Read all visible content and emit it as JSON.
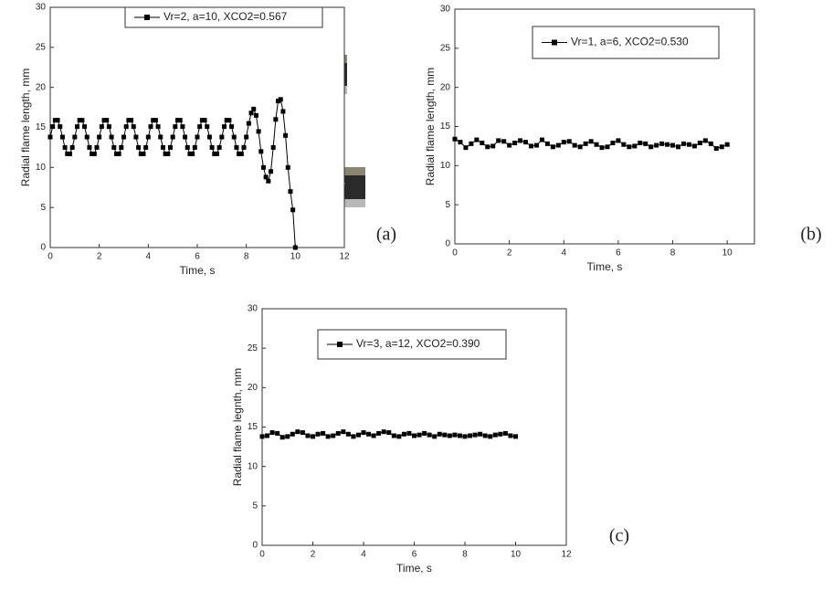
{
  "chart_data": [
    {
      "type": "line",
      "label": "(a)",
      "xlabel": "Time, s",
      "ylabel": "Radial flame length, mm",
      "xlim": [
        0,
        12
      ],
      "xticks": [
        0,
        2,
        4,
        6,
        8,
        10,
        12
      ],
      "ylim": [
        0,
        30
      ],
      "yticks": [
        0,
        5,
        10,
        15,
        20,
        25,
        30
      ],
      "x": [
        0,
        0.1,
        0.2,
        0.3,
        0.4,
        0.5,
        0.6,
        0.7,
        0.8,
        0.9,
        1,
        1.1,
        1.2,
        1.3,
        1.4,
        1.5,
        1.6,
        1.7,
        1.8,
        1.9,
        2,
        2.1,
        2.2,
        2.3,
        2.4,
        2.5,
        2.6,
        2.7,
        2.8,
        2.9,
        3,
        3.1,
        3.2,
        3.3,
        3.4,
        3.5,
        3.6,
        3.7,
        3.8,
        3.9,
        4,
        4.1,
        4.2,
        4.3,
        4.4,
        4.5,
        4.6,
        4.7,
        4.8,
        4.9,
        5,
        5.1,
        5.2,
        5.3,
        5.4,
        5.5,
        5.6,
        5.7,
        5.8,
        5.9,
        6,
        6.1,
        6.2,
        6.3,
        6.4,
        6.5,
        6.6,
        6.7,
        6.8,
        6.9,
        7,
        7.1,
        7.2,
        7.3,
        7.4,
        7.5,
        7.6,
        7.7,
        7.8,
        7.9,
        8,
        8.1,
        8.2,
        8.3,
        8.4,
        8.5,
        8.6,
        8.7,
        8.8,
        8.9,
        9,
        9.1,
        9.2,
        9.3,
        9.4,
        9.5,
        9.6,
        9.7,
        9.8,
        9.9,
        10
      ],
      "series": [
        {
          "name": "Vr=2, a=10, XCO2=0.567",
          "color": "#000000",
          "values": [
            13.8,
            15.1,
            15.9,
            15.9,
            15.1,
            13.8,
            12.5,
            11.7,
            11.7,
            12.5,
            13.8,
            15.1,
            15.9,
            15.9,
            15.1,
            13.8,
            12.5,
            11.7,
            11.7,
            12.5,
            13.8,
            15.1,
            15.9,
            15.9,
            15.1,
            13.8,
            12.5,
            11.7,
            11.7,
            12.5,
            13.8,
            15.1,
            15.9,
            15.9,
            15.1,
            13.8,
            12.5,
            11.7,
            11.7,
            12.5,
            13.8,
            15.1,
            15.9,
            15.9,
            15.1,
            13.8,
            12.5,
            11.7,
            11.7,
            12.5,
            13.8,
            15.1,
            15.9,
            15.9,
            15.1,
            13.8,
            12.5,
            11.7,
            11.7,
            12.5,
            13.8,
            15.1,
            15.9,
            15.9,
            15.1,
            13.8,
            12.5,
            11.7,
            11.7,
            12.5,
            13.8,
            15.1,
            15.9,
            15.9,
            15.1,
            13.8,
            12.5,
            11.7,
            11.7,
            12.5,
            13.8,
            15.5,
            16.8,
            17.3,
            16.5,
            14.5,
            12.0,
            10.0,
            8.8,
            8.3,
            9.5,
            12.5,
            16.0,
            18.3,
            18.5,
            17.0,
            14.0,
            10.0,
            7.0,
            4.7,
            0
          ]
        }
      ]
    },
    {
      "type": "line",
      "label": "(b)",
      "xlabel": "Time, s",
      "ylabel": "Radial flame length, mm",
      "xlim": [
        0,
        11
      ],
      "xticks": [
        0,
        2,
        4,
        6,
        8,
        10
      ],
      "ylim": [
        0,
        30
      ],
      "yticks": [
        0,
        5,
        10,
        15,
        20,
        25,
        30
      ],
      "x": [
        0,
        0.2,
        0.4,
        0.6,
        0.8,
        1,
        1.2,
        1.4,
        1.6,
        1.8,
        2,
        2.2,
        2.4,
        2.6,
        2.8,
        3,
        3.2,
        3.4,
        3.6,
        3.8,
        4,
        4.2,
        4.4,
        4.6,
        4.8,
        5,
        5.2,
        5.4,
        5.6,
        5.8,
        6,
        6.2,
        6.4,
        6.6,
        6.8,
        7,
        7.2,
        7.4,
        7.6,
        7.8,
        8,
        8.2,
        8.4,
        8.6,
        8.8,
        9,
        9.2,
        9.4,
        9.6,
        9.8,
        10
      ],
      "series": [
        {
          "name": "Vr=1, a=6, XCO2=0.530",
          "color": "#000000",
          "values": [
            13.4,
            13.0,
            12.3,
            12.8,
            13.3,
            12.9,
            12.4,
            12.5,
            13.2,
            13.1,
            12.6,
            12.9,
            13.2,
            13.0,
            12.5,
            12.6,
            13.3,
            12.8,
            12.4,
            12.6,
            13.0,
            13.1,
            12.6,
            12.4,
            12.8,
            13.1,
            12.7,
            12.3,
            12.4,
            12.9,
            13.2,
            12.7,
            12.4,
            12.5,
            12.9,
            12.8,
            12.4,
            12.6,
            12.8,
            12.7,
            12.6,
            12.4,
            12.8,
            12.7,
            12.5,
            12.9,
            13.2,
            12.8,
            12.2,
            12.4,
            12.7
          ]
        }
      ]
    },
    {
      "type": "line",
      "label": "(c)",
      "xlabel": "Time, s",
      "ylabel": "Radial flame legnth, mm",
      "xlim": [
        0,
        12
      ],
      "xticks": [
        0,
        2,
        4,
        6,
        8,
        10,
        12
      ],
      "ylim": [
        0,
        30
      ],
      "yticks": [
        0,
        5,
        10,
        15,
        20,
        25,
        30
      ],
      "x": [
        0,
        0.2,
        0.4,
        0.6,
        0.8,
        1,
        1.2,
        1.4,
        1.6,
        1.8,
        2,
        2.2,
        2.4,
        2.6,
        2.8,
        3,
        3.2,
        3.4,
        3.6,
        3.8,
        4,
        4.2,
        4.4,
        4.6,
        4.8,
        5,
        5.2,
        5.4,
        5.6,
        5.8,
        6,
        6.2,
        6.4,
        6.6,
        6.8,
        7,
        7.2,
        7.4,
        7.6,
        7.8,
        8,
        8.2,
        8.4,
        8.6,
        8.8,
        9,
        9.2,
        9.4,
        9.6,
        9.8,
        10
      ],
      "series": [
        {
          "name": "Vr=3, a=12, XCO2=0.390",
          "color": "#000000",
          "values": [
            13.8,
            13.9,
            14.3,
            14.2,
            13.7,
            13.8,
            14.1,
            14.4,
            14.3,
            13.9,
            13.8,
            14.1,
            14.2,
            13.8,
            13.9,
            14.2,
            14.4,
            14.1,
            13.8,
            14.0,
            14.3,
            14.1,
            13.9,
            14.2,
            14.4,
            14.3,
            13.9,
            13.8,
            14.1,
            14.2,
            13.9,
            14.0,
            14.2,
            14.0,
            13.8,
            14.1,
            14.0,
            13.9,
            14.0,
            13.9,
            13.8,
            13.9,
            14.0,
            14.1,
            13.9,
            13.8,
            14.0,
            14.1,
            14.2,
            13.9,
            13.8
          ]
        }
      ]
    }
  ]
}
